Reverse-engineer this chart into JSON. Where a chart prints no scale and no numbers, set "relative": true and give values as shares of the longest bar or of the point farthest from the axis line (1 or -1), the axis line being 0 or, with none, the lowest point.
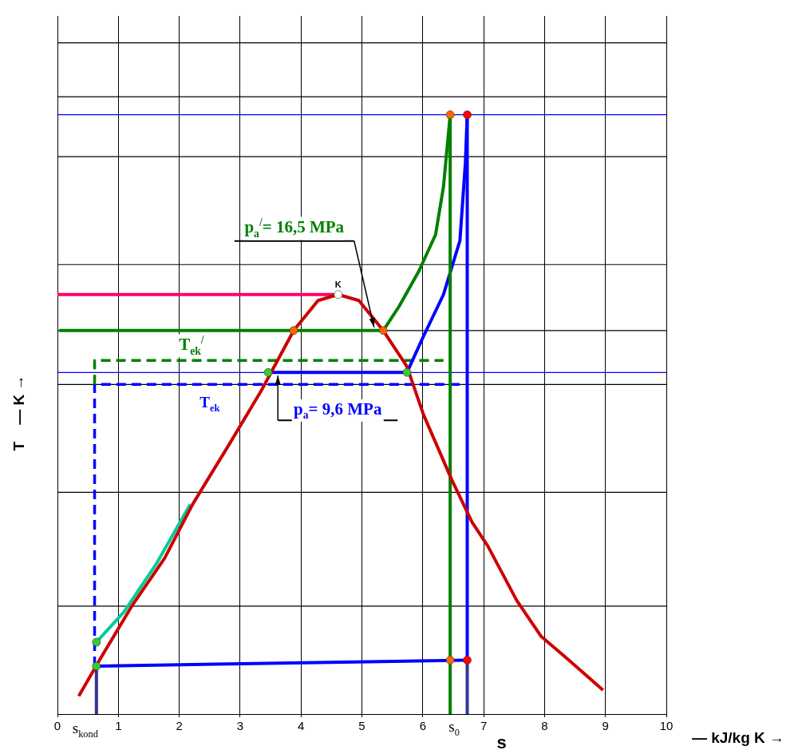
{
  "chart_data": {
    "type": "line",
    "xlabel": "s",
    "ylabel": "T    — K →",
    "relative": true,
    "xlim": [
      0,
      10
    ],
    "xticks": [
      0,
      1,
      2,
      3,
      4,
      5,
      6,
      7,
      8,
      9,
      10
    ],
    "grid": "x",
    "legend": false,
    "tick_labels": "x",
    "marker": "none",
    "series": [
      {
        "color": "#cc0000",
        "x": [
          0.35,
          0.69,
          1.22,
          1.76,
          2.22,
          2.82,
          3.35,
          3.88,
          4.28,
          4.61,
          4.95,
          5.35,
          5.74,
          6.01,
          6.48,
          6.81,
          7.07,
          7.54,
          7.94,
          8.4,
          8.96
        ],
        "values": [
          0.03,
          0.09,
          0.18,
          0.26,
          0.35,
          0.45,
          0.54,
          0.64,
          0.69,
          0.7,
          0.69,
          0.64,
          0.58,
          0.5,
          0.39,
          0.32,
          0.28,
          0.19,
          0.13,
          0.09,
          0.04
        ]
      },
      {
        "color": "#ff0066",
        "x": [
          0,
          4.61
        ],
        "values": [
          0.7,
          0.7
        ]
      },
      {
        "color": "#008000",
        "x": [
          0.03,
          5.35,
          5.61,
          5.94,
          6.21,
          6.34,
          6.45
        ],
        "values": [
          0.64,
          0.64,
          0.68,
          0.74,
          0.8,
          0.88,
          1.0
        ]
      },
      {
        "type": "line",
        "color": "#008000",
        "x": [
          6.45,
          6.45
        ],
        "values": [
          1.0,
          0
        ]
      },
      {
        "color": "#0000ff",
        "x": [
          3.46,
          5.74,
          6.01,
          6.34,
          6.61,
          6.7,
          6.73
        ],
        "values": [
          0.57,
          0.57,
          0.63,
          0.7,
          0.79,
          0.92,
          1.0
        ]
      },
      {
        "type": "line",
        "color": "#0000ff",
        "x": [
          6.73,
          6.73
        ],
        "values": [
          1.0,
          0.09
        ]
      },
      {
        "type": "line",
        "color": "#0000ff",
        "x": [
          0.64,
          6.73
        ],
        "values": [
          0.08,
          0.09
        ]
      },
      {
        "type": "line",
        "color": "#333399",
        "x": [
          0.64,
          0.64
        ],
        "values": [
          0.08,
          0
        ]
      },
      {
        "type": "line",
        "color": "#333399",
        "x": [
          6.73,
          6.73
        ],
        "values": [
          0.09,
          0
        ]
      },
      {
        "type": "line",
        "color": "#008000",
        "line_style": "dashed",
        "x": [
          0.61,
          0.61,
          6.34
        ],
        "values": [
          0.55,
          0.59,
          0.59
        ]
      },
      {
        "type": "line",
        "color": "#0000ff",
        "line_style": "dashed",
        "x": [
          0.61,
          0.61,
          6.68
        ],
        "values": [
          0.08,
          0.55,
          0.55
        ]
      },
      {
        "color": "#00cc99",
        "x": [
          0.64,
          1.09,
          1.62,
          2.18
        ],
        "values": [
          0.12,
          0.17,
          0.25,
          0.35
        ]
      },
      {
        "type": "scatter",
        "marker": "circle",
        "x": [
          3.88,
          5.35,
          6.45,
          6.45,
          6.73,
          6.73,
          3.46,
          5.74,
          0.64,
          0.64,
          4.61
        ],
        "values": [
          0.64,
          0.64,
          1.0,
          0.09,
          1.0,
          0.09,
          0.57,
          0.57,
          0.12,
          0.08,
          0.7
        ],
        "colors": [
          "#ff6600",
          "#ff6600",
          "#ff6600",
          "#ff6600",
          "#ff0000",
          "#ff0000",
          "#33cc33",
          "#33cc33",
          "#33cc33",
          "#33cc33",
          "#ffffff"
        ]
      }
    ],
    "ref_lines": [
      {
        "axis": "y",
        "value": 1.12,
        "color": "#000000"
      },
      {
        "axis": "y",
        "value": 1.03,
        "color": "#000000"
      },
      {
        "axis": "y",
        "value": 1.0,
        "color": "#0000ff"
      },
      {
        "axis": "y",
        "value": 0.93,
        "color": "#000000"
      },
      {
        "axis": "y",
        "value": 0.75,
        "color": "#000000"
      },
      {
        "axis": "y",
        "value": 0.64,
        "color": "#000000"
      },
      {
        "axis": "y",
        "value": 0.57,
        "color": "#0000ff"
      },
      {
        "axis": "y",
        "value": 0.55,
        "color": "#000000"
      },
      {
        "axis": "y",
        "value": 0.37,
        "color": "#000000"
      },
      {
        "axis": "y",
        "value": 0.18,
        "color": "#000000"
      }
    ],
    "annotations": [
      {
        "text": "p$_{a}$$^{/}$= 16,5 MPa",
        "x": 5.2,
        "y": 0.64
      },
      {
        "text": "p$_{a}$= 9,6 MPa",
        "x": 3.62,
        "y": 0.57
      },
      {
        "text": "T$_{ek}$$^{/}$",
        "x": 2.2,
        "y": 0.59
      },
      {
        "text": "T$_{ek}$",
        "x": 2.5,
        "y": 0.55
      },
      {
        "text": "K",
        "x": 4.61,
        "y": 0.7
      },
      {
        "text": "s$_{kond}$",
        "x": 0.64,
        "y": 0
      },
      {
        "text": "s$_{0}$",
        "x": 6.45,
        "y": 0
      },
      "— kJ/kg K →"
    ]
  }
}
